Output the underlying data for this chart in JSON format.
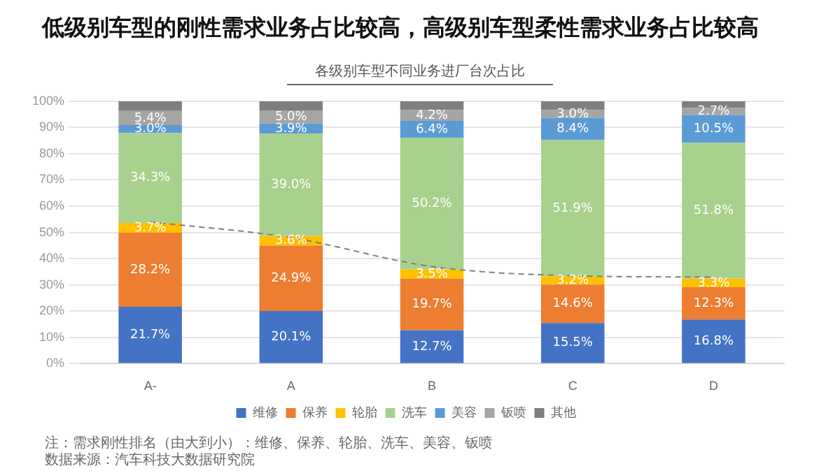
{
  "chart_data": {
    "type": "bar",
    "stacked": true,
    "title": "低级别车型的刚性需求业务占比较高，高级别车型柔性需求业务占比较高",
    "subtitle": "各级别车型不同业务进厂台次占比",
    "categories": [
      "A-",
      "A",
      "B",
      "C",
      "D"
    ],
    "series": [
      {
        "name": "维修",
        "color": "#4472c4",
        "values": [
          21.7,
          20.1,
          12.7,
          15.5,
          16.8
        ],
        "value_labels": [
          "21.7%",
          "20.1%",
          "12.7%",
          "15.5%",
          "16.8%"
        ]
      },
      {
        "name": "保养",
        "color": "#ed7d31",
        "values": [
          28.2,
          24.9,
          19.7,
          14.6,
          12.3
        ],
        "value_labels": [
          "28.2%",
          "24.9%",
          "19.7%",
          "14.6%",
          "12.3%"
        ]
      },
      {
        "name": "轮胎",
        "color": "#ffc000",
        "values": [
          3.7,
          3.6,
          3.5,
          3.2,
          3.3
        ],
        "value_labels": [
          "3.7%",
          "3.6%",
          "3.5%",
          "3.2%",
          "3.3%"
        ]
      },
      {
        "name": "洗车",
        "color": "#a9d18e",
        "values": [
          34.3,
          39.0,
          50.2,
          51.9,
          51.8
        ],
        "value_labels": [
          "34.3%",
          "39.0%",
          "50.2%",
          "51.9%",
          "51.8%"
        ]
      },
      {
        "name": "美容",
        "color": "#5b9bd5",
        "values": [
          3.0,
          3.9,
          6.4,
          8.4,
          10.5
        ],
        "value_labels": [
          "3.0%",
          "3.9%",
          "6.4%",
          "8.4%",
          "10.5%"
        ]
      },
      {
        "name": "钣喷",
        "color": "#a5a5a5",
        "values": [
          5.4,
          5.0,
          4.2,
          3.0,
          2.7
        ],
        "value_labels": [
          "5.4%",
          "5.0%",
          "4.2%",
          "3.0%",
          "2.7%"
        ]
      },
      {
        "name": "其他",
        "color": "#7f7f7f",
        "values": [
          3.7,
          3.5,
          3.3,
          3.4,
          2.6
        ]
      },
      {
        "type": "line",
        "color": "#7f7f7f",
        "line_style": "dashed",
        "marker": "none",
        "values": [
          54,
          48,
          37,
          33.5,
          33
        ]
      }
    ],
    "ylim": [
      0,
      100
    ],
    "yticks": [
      {
        "value": 0,
        "label": "0%"
      },
      {
        "value": 10,
        "label": "10%"
      },
      {
        "value": 20,
        "label": "20%"
      },
      {
        "value": 30,
        "label": "30%"
      },
      {
        "value": 40,
        "label": "40%"
      },
      {
        "value": 50,
        "label": "50%"
      },
      {
        "value": 60,
        "label": "60%"
      },
      {
        "value": 70,
        "label": "70%"
      },
      {
        "value": 80,
        "label": "80%"
      },
      {
        "value": 90,
        "label": "90%"
      },
      {
        "value": 100,
        "label": "100%"
      }
    ],
    "grid": "y",
    "legend": "bottom",
    "annotations": [
      "注：需求刚性排名（由大到小）：维修、保养、轮胎、洗车、美容、钣喷",
      "数据来源：汽车科技大数据研究院"
    ]
  }
}
